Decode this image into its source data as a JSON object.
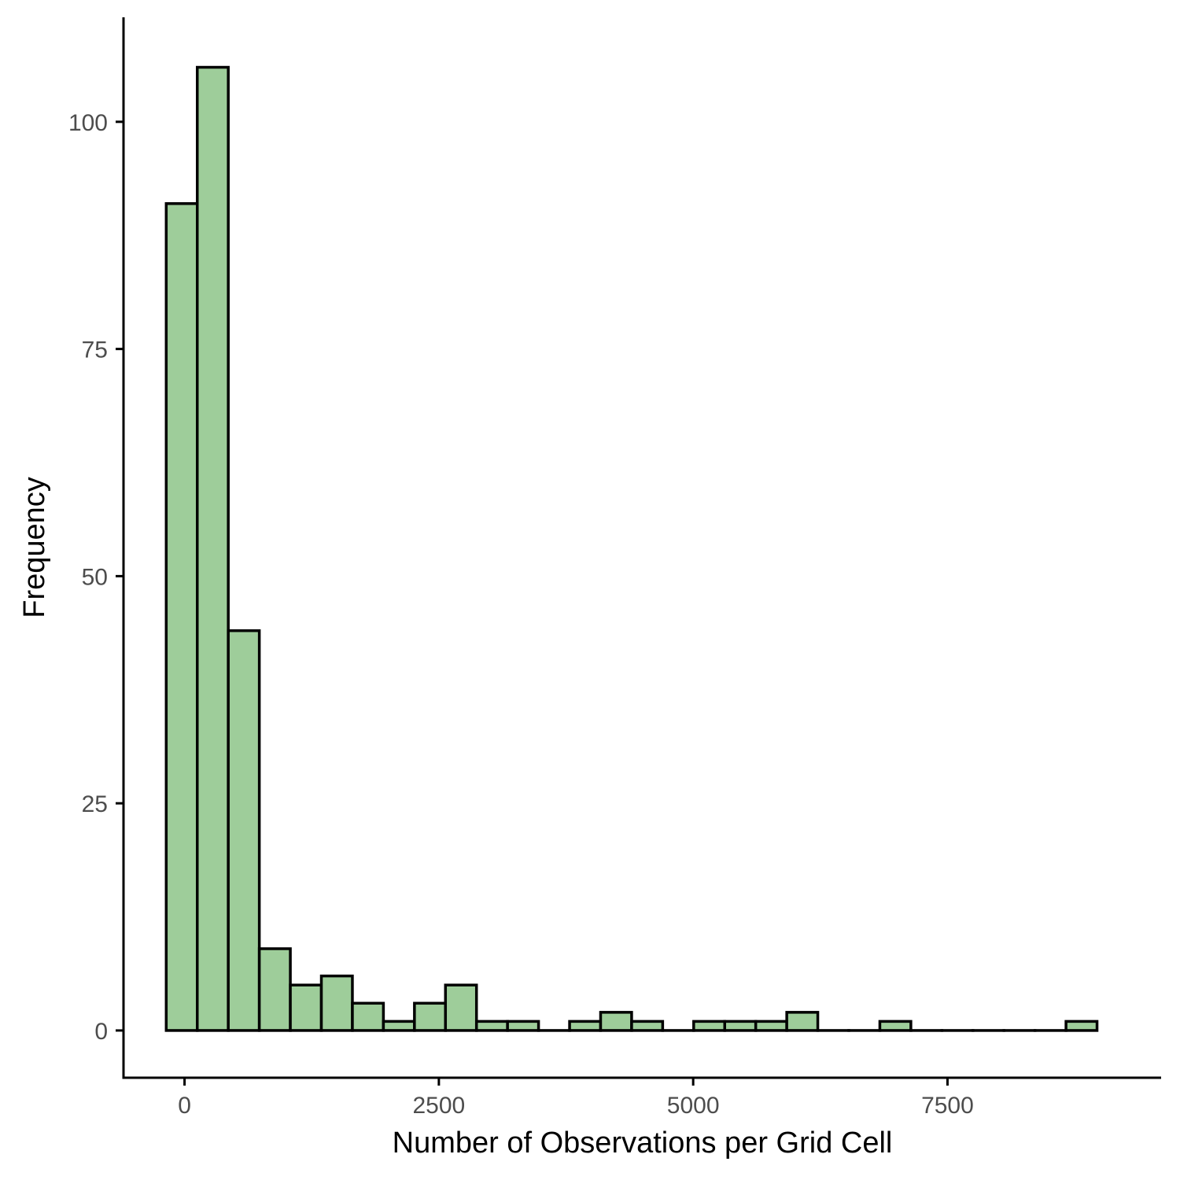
{
  "chart_data": {
    "type": "bar",
    "subtype": "histogram",
    "xlabel": "Number of Observations per Grid Cell",
    "ylabel": "Frequency",
    "xlim": [
      -600,
      9600
    ],
    "ylim": [
      -5.2,
      111.5
    ],
    "bin_width": 305,
    "x_ticks": [
      0,
      2500,
      5000,
      7500
    ],
    "x_tick_labels": [
      "0",
      "2500",
      "5000",
      "7500"
    ],
    "y_ticks": [
      0,
      25,
      50,
      75,
      100
    ],
    "y_tick_labels": [
      "0",
      "25",
      "50",
      "75",
      "100"
    ],
    "fill_color": "#9ecd9a",
    "outline_color": "#000000",
    "grid": false,
    "legend": "none",
    "bins": [
      {
        "x_start": -180,
        "x_end": 125,
        "count": 91
      },
      {
        "x_start": 125,
        "x_end": 430,
        "count": 106
      },
      {
        "x_start": 430,
        "x_end": 735,
        "count": 44
      },
      {
        "x_start": 735,
        "x_end": 1040,
        "count": 9
      },
      {
        "x_start": 1040,
        "x_end": 1345,
        "count": 5
      },
      {
        "x_start": 1345,
        "x_end": 1650,
        "count": 6
      },
      {
        "x_start": 1650,
        "x_end": 1955,
        "count": 3
      },
      {
        "x_start": 1955,
        "x_end": 2260,
        "count": 1
      },
      {
        "x_start": 2260,
        "x_end": 2565,
        "count": 3
      },
      {
        "x_start": 2565,
        "x_end": 2870,
        "count": 5
      },
      {
        "x_start": 2870,
        "x_end": 3175,
        "count": 1
      },
      {
        "x_start": 3175,
        "x_end": 3480,
        "count": 1
      },
      {
        "x_start": 3480,
        "x_end": 3785,
        "count": 0
      },
      {
        "x_start": 3785,
        "x_end": 4090,
        "count": 1
      },
      {
        "x_start": 4090,
        "x_end": 4395,
        "count": 2
      },
      {
        "x_start": 4395,
        "x_end": 4700,
        "count": 1
      },
      {
        "x_start": 4700,
        "x_end": 5005,
        "count": 0
      },
      {
        "x_start": 5005,
        "x_end": 5310,
        "count": 1
      },
      {
        "x_start": 5310,
        "x_end": 5615,
        "count": 1
      },
      {
        "x_start": 5615,
        "x_end": 5920,
        "count": 1
      },
      {
        "x_start": 5920,
        "x_end": 6225,
        "count": 2
      },
      {
        "x_start": 6225,
        "x_end": 6530,
        "count": 0
      },
      {
        "x_start": 6530,
        "x_end": 6835,
        "count": 0
      },
      {
        "x_start": 6835,
        "x_end": 7140,
        "count": 1
      },
      {
        "x_start": 7140,
        "x_end": 7445,
        "count": 0
      },
      {
        "x_start": 7445,
        "x_end": 7750,
        "count": 0
      },
      {
        "x_start": 7750,
        "x_end": 8055,
        "count": 0
      },
      {
        "x_start": 8055,
        "x_end": 8360,
        "count": 0
      },
      {
        "x_start": 8360,
        "x_end": 8665,
        "count": 0
      },
      {
        "x_start": 8665,
        "x_end": 8970,
        "count": 1
      }
    ]
  }
}
